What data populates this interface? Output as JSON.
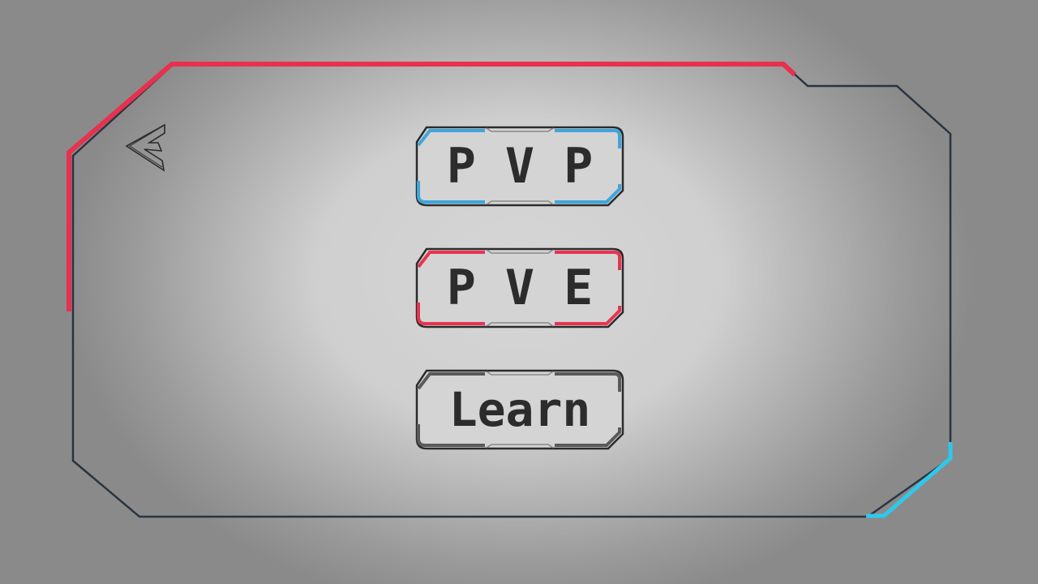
{
  "menu": {
    "buttons": [
      {
        "id": "pvp",
        "label": "P V P",
        "accent": "#3ea6dc"
      },
      {
        "id": "pve",
        "label": "P V E",
        "accent": "#e8344f"
      },
      {
        "id": "learn",
        "label": "Learn",
        "accent": "#5a5a5a"
      }
    ]
  },
  "back_button": {
    "icon": "back-arrow-icon"
  },
  "colors": {
    "frame_red": "#e8304f",
    "frame_blue": "#2ec8ec",
    "frame_dark": "#2a3440"
  }
}
